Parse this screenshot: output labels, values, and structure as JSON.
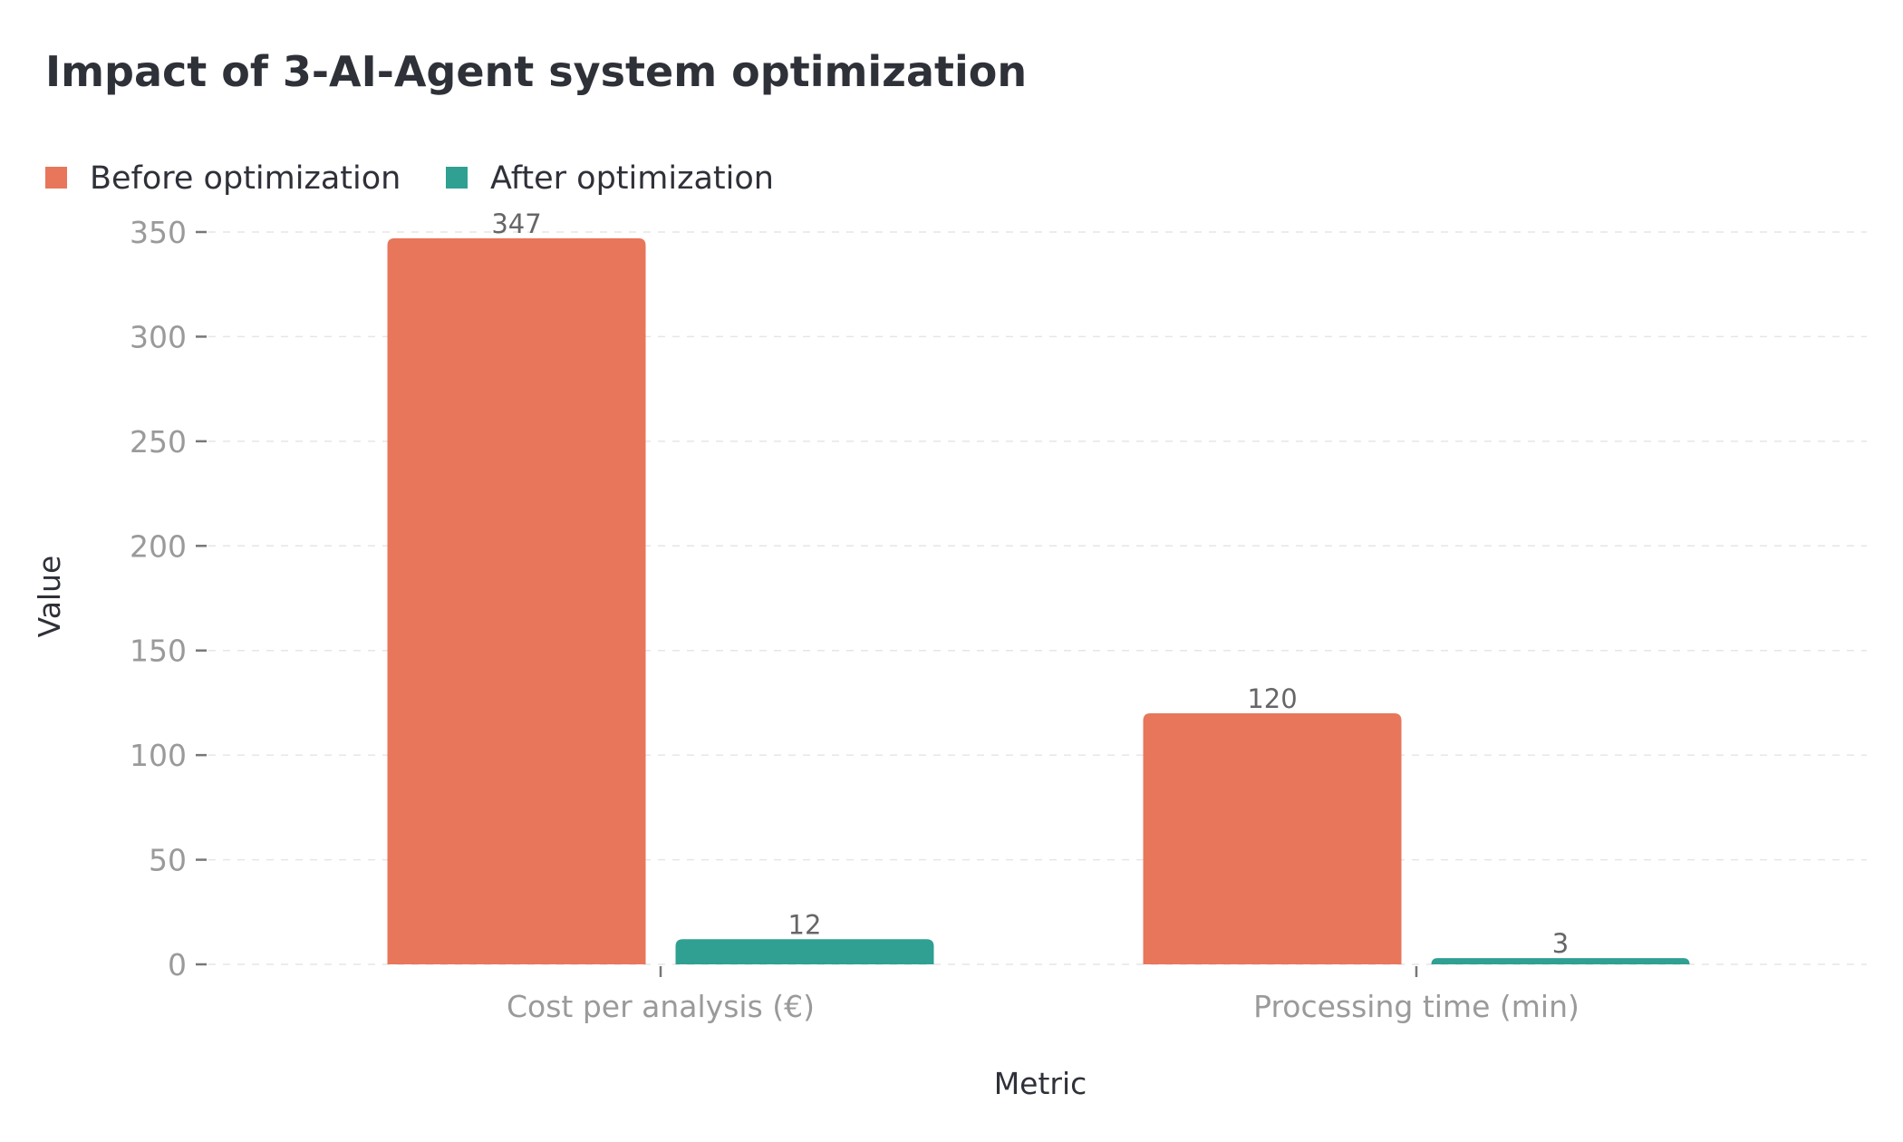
{
  "chart_data": {
    "type": "bar",
    "title": "Impact of 3-AI-Agent system optimization",
    "xlabel": "Metric",
    "ylabel": "Value",
    "categories": [
      "Cost per analysis (€)",
      "Processing time (min)"
    ],
    "series": [
      {
        "name": "Before optimization",
        "values": [
          347,
          120
        ],
        "color": "#E8765B"
      },
      {
        "name": "After optimization",
        "values": [
          12,
          3
        ],
        "color": "#2FA092"
      }
    ],
    "yticks": [
      0,
      50,
      100,
      150,
      200,
      250,
      300,
      350
    ],
    "ylim": [
      0,
      350
    ],
    "grid": true,
    "legend_position": "top-left"
  }
}
